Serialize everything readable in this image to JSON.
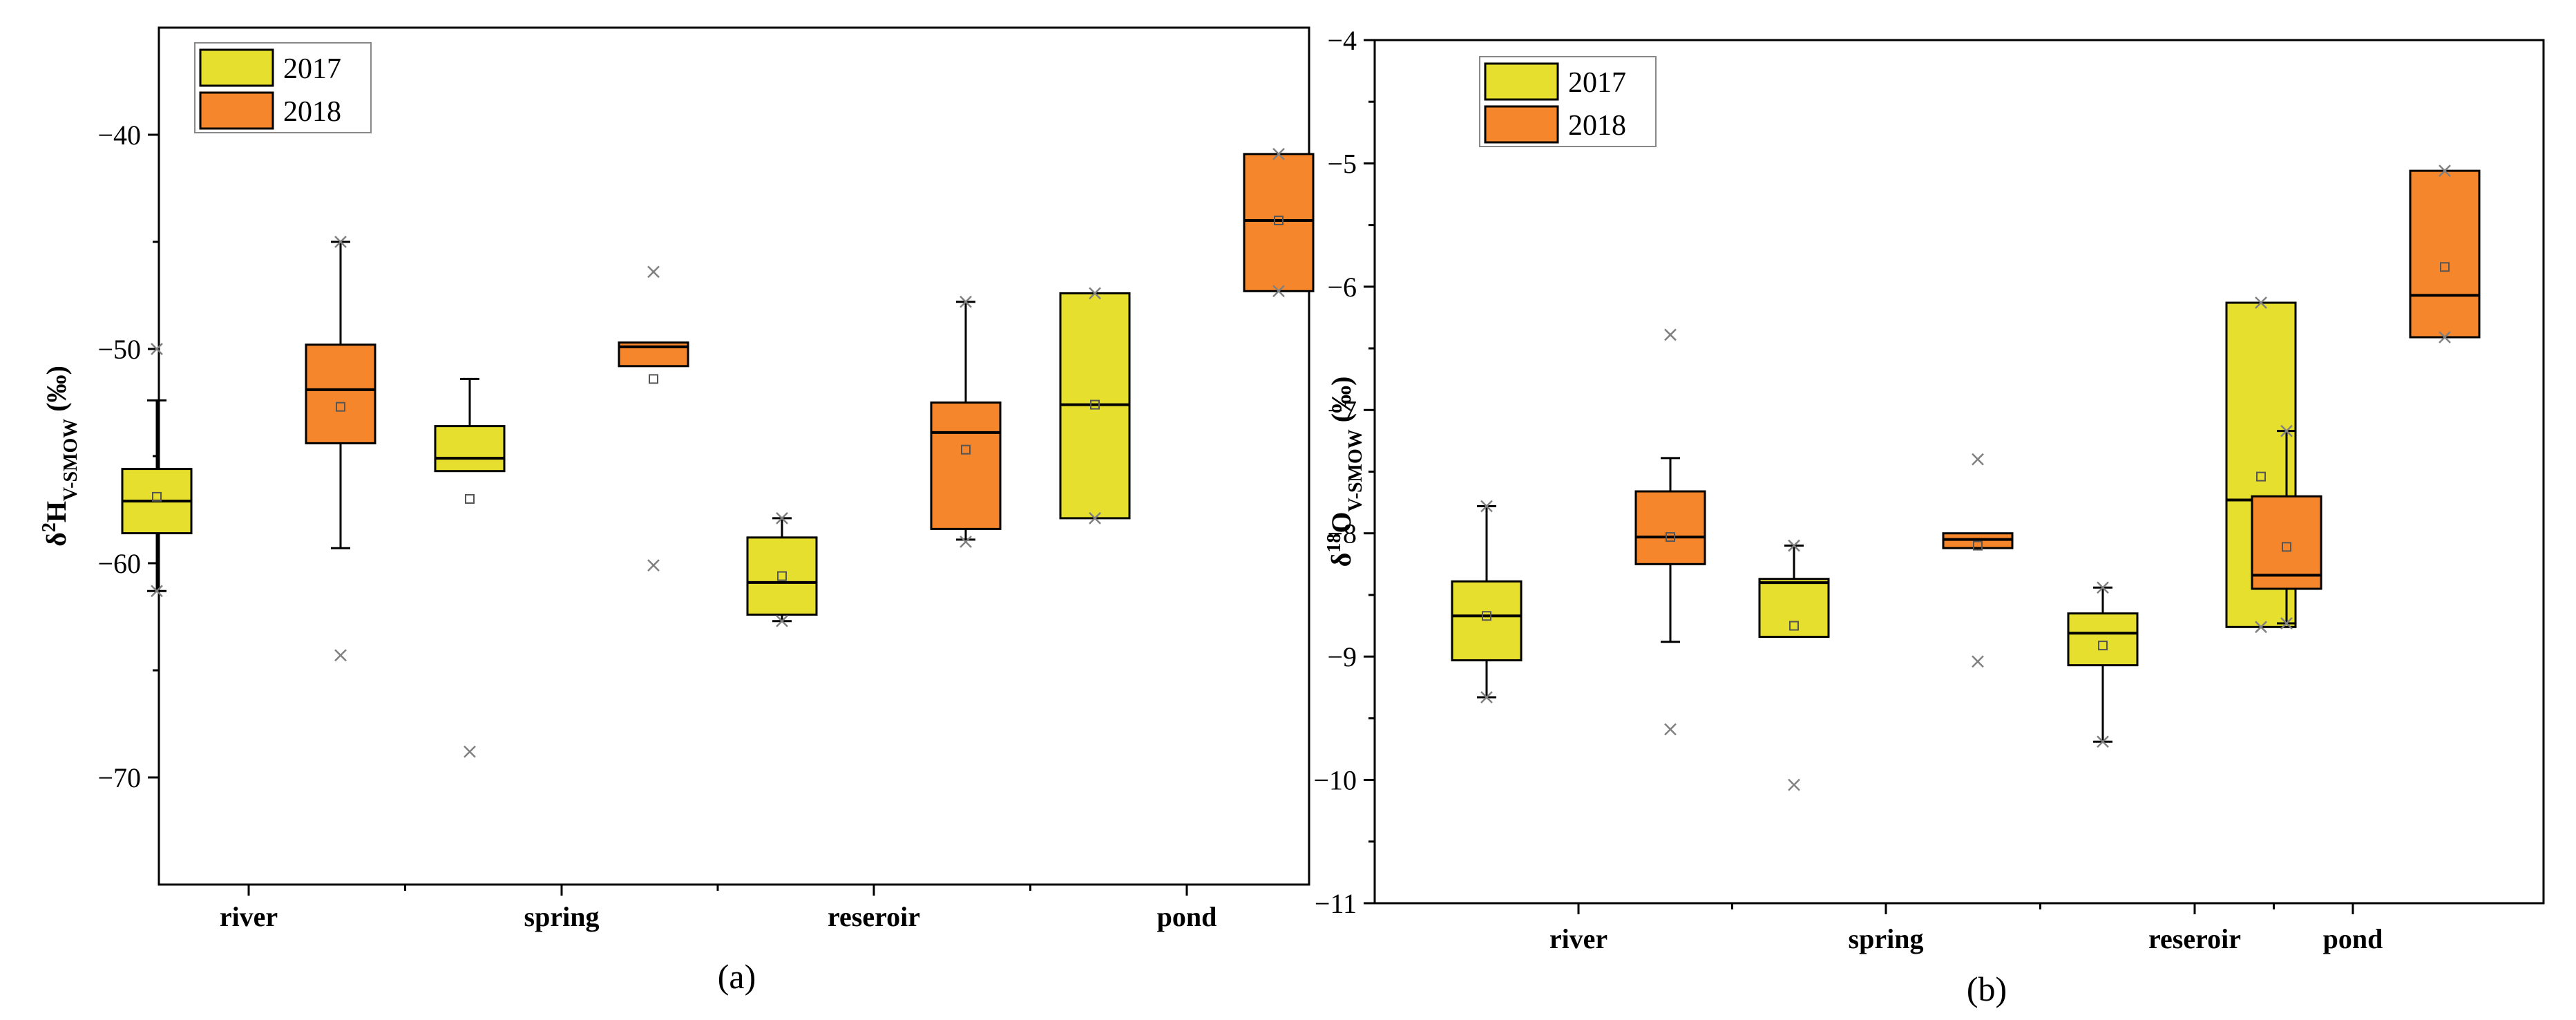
{
  "chart_data": [
    {
      "type": "box",
      "panel_label": "(a)",
      "ylabel": {
        "main": "δ",
        "sup": "2",
        "base": "H",
        "sub": "V-SMOW",
        "tail": " (‰)"
      },
      "ylim": [
        -75,
        -35
      ],
      "yticks": [
        -70,
        -60,
        -50,
        -40
      ],
      "grid": false,
      "legend": {
        "position": "top-left",
        "entries": [
          "2017",
          "2018"
        ]
      },
      "colors": {
        "2017": "#e6df2e",
        "2018": "#f5862b"
      },
      "categories": [
        "river",
        "spring",
        "reseroir",
        "pond"
      ],
      "series": [
        {
          "name": "2017",
          "boxes": [
            {
              "min": -61.3,
              "q1": -58.6,
              "median": -57.1,
              "q3": -55.6,
              "max": -52.4,
              "mean": -56.9,
              "outliers": [
                -50.0,
                -61.3
              ]
            },
            {
              "min": -55.7,
              "q1": -55.7,
              "median": -55.1,
              "q3": -53.6,
              "max": -51.4,
              "mean": -57.0,
              "outliers": [
                -68.8
              ]
            },
            {
              "min": -62.7,
              "q1": -62.4,
              "median": -60.9,
              "q3": -58.8,
              "max": -57.9,
              "mean": -60.6,
              "outliers": [
                -62.7,
                -57.9
              ]
            },
            {
              "min": -57.9,
              "q1": -57.9,
              "median": -52.6,
              "q3": -47.4,
              "max": -47.4,
              "mean": -52.6,
              "outliers": [
                -57.9,
                -47.4
              ]
            }
          ]
        },
        {
          "name": "2018",
          "boxes": [
            {
              "min": -59.3,
              "q1": -54.4,
              "median": -51.9,
              "q3": -49.8,
              "max": -45.0,
              "mean": -52.7,
              "outliers": [
                -45.0,
                -64.3
              ]
            },
            {
              "min": -50.8,
              "q1": -50.8,
              "median": -49.9,
              "q3": -49.7,
              "max": -49.7,
              "mean": -51.4,
              "outliers": [
                -46.4,
                -60.1
              ]
            },
            {
              "min": -58.9,
              "q1": -58.4,
              "median": -53.9,
              "q3": -52.5,
              "max": -47.8,
              "mean": -54.7,
              "outliers": [
                -47.8,
                -59.0
              ]
            },
            {
              "min": -47.3,
              "q1": -47.3,
              "median": -44.0,
              "q3": -40.9,
              "max": -40.9,
              "mean": -44.0,
              "outliers": [
                -40.9,
                -47.3
              ]
            }
          ]
        }
      ]
    },
    {
      "type": "box",
      "panel_label": "(b)",
      "ylabel": {
        "main": "δ",
        "sup": "18",
        "base": "O",
        "sub": "V-SMOW",
        "tail": " (‰)"
      },
      "ylim": [
        -11,
        -4
      ],
      "yticks": [
        -11,
        -10,
        -9,
        -8,
        -7,
        -6,
        -5,
        -4
      ],
      "grid": false,
      "legend": {
        "position": "top-left",
        "entries": [
          "2017",
          "2018"
        ]
      },
      "colors": {
        "2017": "#e6df2e",
        "2018": "#f5862b"
      },
      "categories": [
        "river",
        "spring",
        "reseroir",
        "pond"
      ],
      "series": [
        {
          "name": "2017",
          "boxes": [
            {
              "min": -9.33,
              "q1": -9.03,
              "median": -8.67,
              "q3": -8.39,
              "max": -7.78,
              "mean": -8.67,
              "outliers": [
                -7.78,
                -9.33
              ]
            },
            {
              "min": -8.84,
              "q1": -8.84,
              "median": -8.4,
              "q3": -8.37,
              "max": -8.1,
              "mean": -8.75,
              "outliers": [
                -10.04,
                -8.1
              ]
            },
            {
              "min": -9.69,
              "q1": -9.07,
              "median": -8.81,
              "q3": -8.65,
              "max": -8.44,
              "mean": -8.91,
              "outliers": [
                -9.69,
                -8.44
              ]
            },
            {
              "min": -8.76,
              "q1": -8.76,
              "median": -7.73,
              "q3": -6.13,
              "max": -6.13,
              "mean": -7.54,
              "outliers": [
                -8.76,
                -6.13
              ]
            }
          ]
        },
        {
          "name": "2018",
          "boxes": [
            {
              "min": -8.88,
              "q1": -8.25,
              "median": -8.03,
              "q3": -7.66,
              "max": -7.39,
              "mean": -8.03,
              "outliers": [
                -6.39,
                -9.59
              ]
            },
            {
              "min": -8.12,
              "q1": -8.12,
              "median": -8.05,
              "q3": -8.0,
              "max": -8.0,
              "mean": -8.1,
              "outliers": [
                -7.4,
                -9.04
              ]
            },
            {
              "min": -8.73,
              "q1": -8.45,
              "median": -8.34,
              "q3": -7.7,
              "max": -7.17,
              "mean": -8.11,
              "outliers": [
                -7.17,
                -8.73
              ]
            },
            {
              "min": -6.41,
              "q1": -6.41,
              "median": -6.07,
              "q3": -5.06,
              "max": -5.06,
              "mean": -5.84,
              "outliers": [
                -5.06,
                -6.41
              ]
            }
          ]
        }
      ]
    }
  ]
}
